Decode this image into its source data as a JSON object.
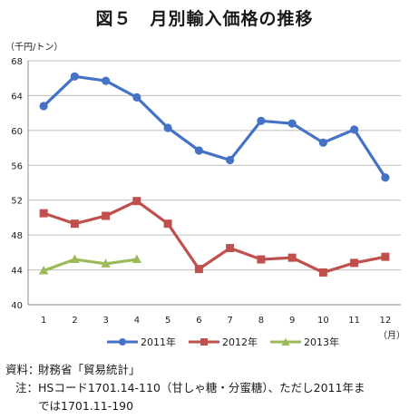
{
  "figure_title": "図５　月別輸入価格の推移",
  "unit_label": "（千円/トン）",
  "x_unit_label": "（月）",
  "chart_data": {
    "type": "line",
    "x": [
      1,
      2,
      3,
      4,
      5,
      6,
      7,
      8,
      9,
      10,
      11,
      12
    ],
    "ylim": [
      40,
      68
    ],
    "yticks": [
      40,
      44,
      48,
      52,
      56,
      60,
      64,
      68
    ],
    "grid": true,
    "legend_position": "bottom",
    "series": [
      {
        "name": "2011年",
        "color": "#4472C4",
        "marker": "circle",
        "values": [
          62.8,
          66.2,
          65.7,
          63.8,
          60.3,
          57.7,
          56.6,
          61.1,
          60.8,
          58.6,
          60.1,
          54.6
        ]
      },
      {
        "name": "2012年",
        "color": "#C0504D",
        "marker": "square",
        "values": [
          50.5,
          49.3,
          50.2,
          51.9,
          49.3,
          44.1,
          46.5,
          45.2,
          45.4,
          43.7,
          44.8,
          45.5
        ]
      },
      {
        "name": "2013年",
        "color": "#9BBB59",
        "marker": "triangle",
        "values": [
          43.9,
          45.2,
          44.7,
          45.2,
          null,
          null,
          null,
          null,
          null,
          null,
          null,
          null
        ]
      }
    ]
  },
  "notes": {
    "source_label": "資料：",
    "source_text": "財務省「貿易統計」",
    "note_label": "注：",
    "note_line1": "HSコード1701.14-110（甘しゃ糖・分蜜糖）、ただし2011年ま",
    "note_line2": "では1701.11-190"
  }
}
